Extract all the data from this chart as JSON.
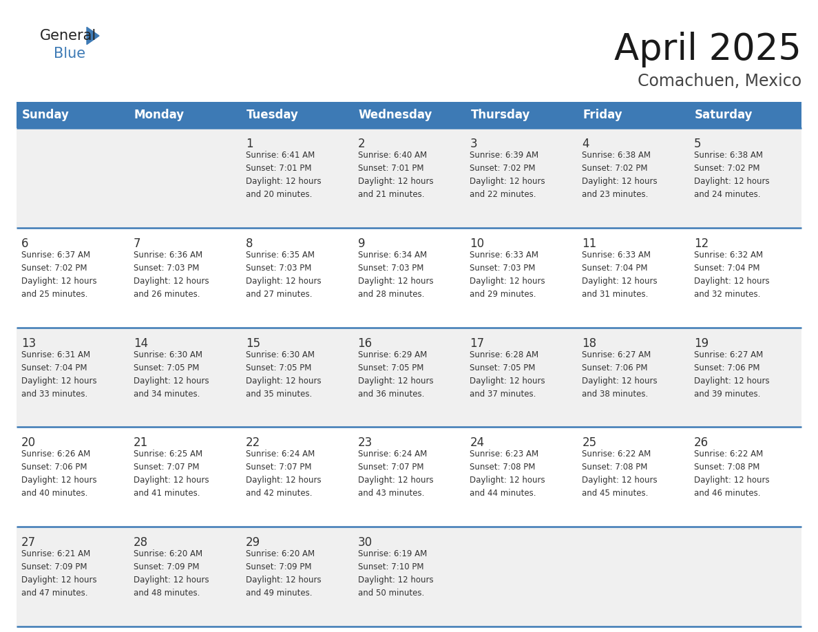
{
  "title": "April 2025",
  "subtitle": "Comachuen, Mexico",
  "days_of_week": [
    "Sunday",
    "Monday",
    "Tuesday",
    "Wednesday",
    "Thursday",
    "Friday",
    "Saturday"
  ],
  "header_bg": "#3d7ab5",
  "header_text": "#ffffff",
  "bg_color": "#ffffff",
  "cell_bg_odd": "#f0f0f0",
  "cell_bg_even": "#ffffff",
  "line_color": "#3d7ab5",
  "day_num_color": "#333333",
  "text_color": "#333333",
  "calendar": [
    [
      {
        "day": null,
        "sunrise": null,
        "sunset": null,
        "daylight_min": null
      },
      {
        "day": null,
        "sunrise": null,
        "sunset": null,
        "daylight_min": null
      },
      {
        "day": 1,
        "sunrise": "6:41 AM",
        "sunset": "7:01 PM",
        "daylight_min": 20
      },
      {
        "day": 2,
        "sunrise": "6:40 AM",
        "sunset": "7:01 PM",
        "daylight_min": 21
      },
      {
        "day": 3,
        "sunrise": "6:39 AM",
        "sunset": "7:02 PM",
        "daylight_min": 22
      },
      {
        "day": 4,
        "sunrise": "6:38 AM",
        "sunset": "7:02 PM",
        "daylight_min": 23
      },
      {
        "day": 5,
        "sunrise": "6:38 AM",
        "sunset": "7:02 PM",
        "daylight_min": 24
      }
    ],
    [
      {
        "day": 6,
        "sunrise": "6:37 AM",
        "sunset": "7:02 PM",
        "daylight_min": 25
      },
      {
        "day": 7,
        "sunrise": "6:36 AM",
        "sunset": "7:03 PM",
        "daylight_min": 26
      },
      {
        "day": 8,
        "sunrise": "6:35 AM",
        "sunset": "7:03 PM",
        "daylight_min": 27
      },
      {
        "day": 9,
        "sunrise": "6:34 AM",
        "sunset": "7:03 PM",
        "daylight_min": 28
      },
      {
        "day": 10,
        "sunrise": "6:33 AM",
        "sunset": "7:03 PM",
        "daylight_min": 29
      },
      {
        "day": 11,
        "sunrise": "6:33 AM",
        "sunset": "7:04 PM",
        "daylight_min": 31
      },
      {
        "day": 12,
        "sunrise": "6:32 AM",
        "sunset": "7:04 PM",
        "daylight_min": 32
      }
    ],
    [
      {
        "day": 13,
        "sunrise": "6:31 AM",
        "sunset": "7:04 PM",
        "daylight_min": 33
      },
      {
        "day": 14,
        "sunrise": "6:30 AM",
        "sunset": "7:05 PM",
        "daylight_min": 34
      },
      {
        "day": 15,
        "sunrise": "6:30 AM",
        "sunset": "7:05 PM",
        "daylight_min": 35
      },
      {
        "day": 16,
        "sunrise": "6:29 AM",
        "sunset": "7:05 PM",
        "daylight_min": 36
      },
      {
        "day": 17,
        "sunrise": "6:28 AM",
        "sunset": "7:05 PM",
        "daylight_min": 37
      },
      {
        "day": 18,
        "sunrise": "6:27 AM",
        "sunset": "7:06 PM",
        "daylight_min": 38
      },
      {
        "day": 19,
        "sunrise": "6:27 AM",
        "sunset": "7:06 PM",
        "daylight_min": 39
      }
    ],
    [
      {
        "day": 20,
        "sunrise": "6:26 AM",
        "sunset": "7:06 PM",
        "daylight_min": 40
      },
      {
        "day": 21,
        "sunrise": "6:25 AM",
        "sunset": "7:07 PM",
        "daylight_min": 41
      },
      {
        "day": 22,
        "sunrise": "6:24 AM",
        "sunset": "7:07 PM",
        "daylight_min": 42
      },
      {
        "day": 23,
        "sunrise": "6:24 AM",
        "sunset": "7:07 PM",
        "daylight_min": 43
      },
      {
        "day": 24,
        "sunrise": "6:23 AM",
        "sunset": "7:08 PM",
        "daylight_min": 44
      },
      {
        "day": 25,
        "sunrise": "6:22 AM",
        "sunset": "7:08 PM",
        "daylight_min": 45
      },
      {
        "day": 26,
        "sunrise": "6:22 AM",
        "sunset": "7:08 PM",
        "daylight_min": 46
      }
    ],
    [
      {
        "day": 27,
        "sunrise": "6:21 AM",
        "sunset": "7:09 PM",
        "daylight_min": 47
      },
      {
        "day": 28,
        "sunrise": "6:20 AM",
        "sunset": "7:09 PM",
        "daylight_min": 48
      },
      {
        "day": 29,
        "sunrise": "6:20 AM",
        "sunset": "7:09 PM",
        "daylight_min": 49
      },
      {
        "day": 30,
        "sunrise": "6:19 AM",
        "sunset": "7:10 PM",
        "daylight_min": 50
      },
      {
        "day": null,
        "sunrise": null,
        "sunset": null,
        "daylight_min": null
      },
      {
        "day": null,
        "sunrise": null,
        "sunset": null,
        "daylight_min": null
      },
      {
        "day": null,
        "sunrise": null,
        "sunset": null,
        "daylight_min": null
      }
    ]
  ],
  "title_fontsize": 38,
  "subtitle_fontsize": 17,
  "header_fontsize": 12,
  "day_num_fontsize": 12,
  "cell_text_fontsize": 8.5,
  "logo_general_fontsize": 15,
  "logo_blue_fontsize": 15
}
